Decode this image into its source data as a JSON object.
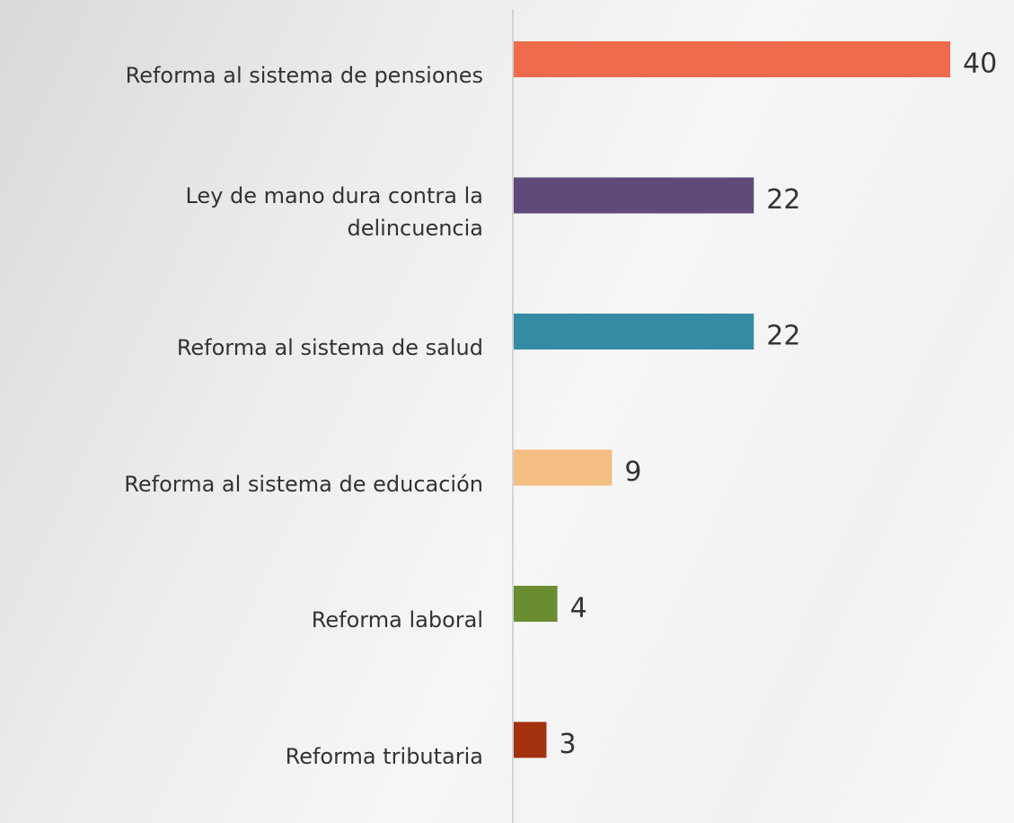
{
  "chart_data": {
    "type": "bar",
    "orientation": "horizontal",
    "categories": [
      "Reforma al sistema de pensiones",
      "Ley de mano dura contra la delincuencia",
      "Reforma al sistema de salud",
      "Reforma al sistema de educación",
      "Reforma laboral",
      "Reforma tributaria"
    ],
    "values": [
      40,
      22,
      22,
      9,
      4,
      3
    ],
    "colors": [
      "#ee6c4b",
      "#5f4a7a",
      "#358ba3",
      "#f4bd82",
      "#6b8d31",
      "#a3300f"
    ]
  }
}
